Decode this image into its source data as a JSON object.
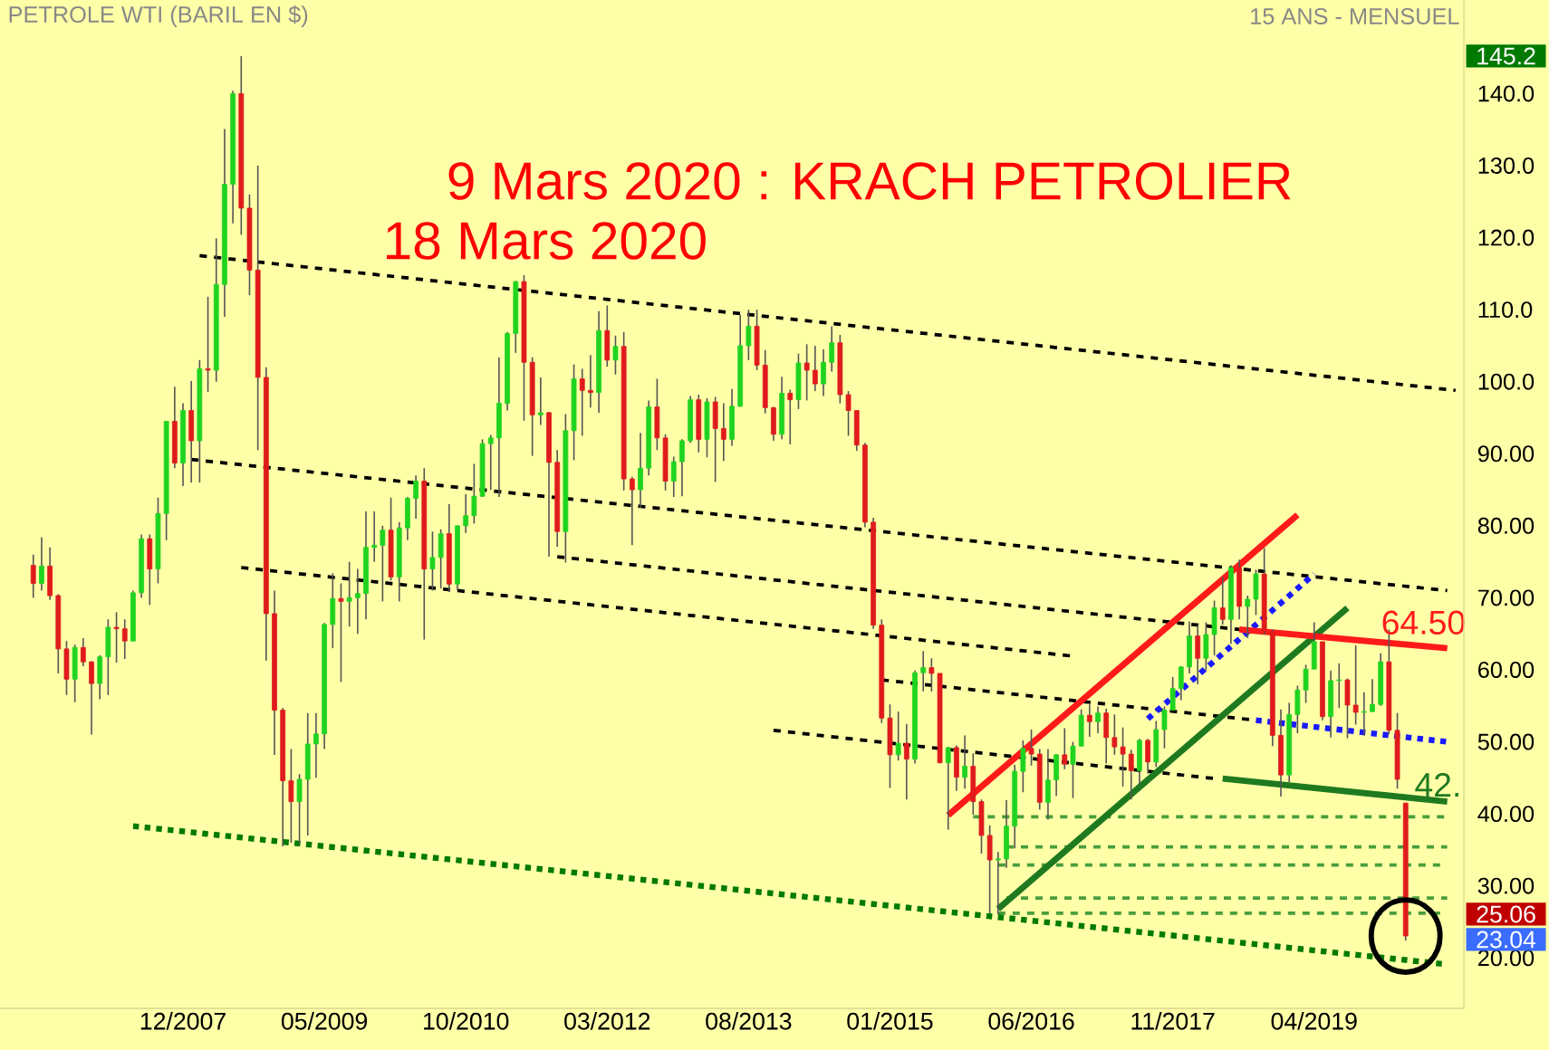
{
  "chart_data": {
    "type": "candlestick",
    "title": "PETROLE WTI (BARIL EN $)",
    "subtitle": "15 ANS - MENSUEL",
    "xlim": [
      "2006-02",
      "2020-10"
    ],
    "ylim": [
      13,
      153
    ],
    "xticks": [
      {
        "value": "2007-12",
        "label": "12/2007"
      },
      {
        "value": "2009-05",
        "label": "05/2009"
      },
      {
        "value": "2010-10",
        "label": "10/2010"
      },
      {
        "value": "2012-03",
        "label": "03/2012"
      },
      {
        "value": "2013-08",
        "label": "08/2013"
      },
      {
        "value": "2015-01",
        "label": "01/2015"
      },
      {
        "value": "2016-06",
        "label": "06/2016"
      },
      {
        "value": "2017-11",
        "label": "11/2017"
      },
      {
        "value": "2019-04",
        "label": "04/2019"
      }
    ],
    "yticks": [
      {
        "value": 20,
        "label": "20.00"
      },
      {
        "value": 30,
        "label": "30.00"
      },
      {
        "value": 40,
        "label": "40.00"
      },
      {
        "value": 50,
        "label": "50.00"
      },
      {
        "value": 60,
        "label": "60.00"
      },
      {
        "value": 70,
        "label": "70.00"
      },
      {
        "value": 80,
        "label": "80.00"
      },
      {
        "value": 90,
        "label": "90.00"
      },
      {
        "value": 100,
        "label": "100.0"
      },
      {
        "value": 110,
        "label": "110.0"
      },
      {
        "value": 120,
        "label": "120.0"
      },
      {
        "value": 130,
        "label": "130.0"
      },
      {
        "value": 140,
        "label": "140.0"
      }
    ],
    "x": [
      "2006-06",
      "2006-07",
      "2006-08",
      "2006-09",
      "2006-10",
      "2006-11",
      "2006-12",
      "2007-01",
      "2007-02",
      "2007-03",
      "2007-04",
      "2007-05",
      "2007-06",
      "2007-07",
      "2007-08",
      "2007-09",
      "2007-10",
      "2007-11",
      "2007-12",
      "2008-01",
      "2008-02",
      "2008-03",
      "2008-04",
      "2008-05",
      "2008-06",
      "2008-07",
      "2008-08",
      "2008-09",
      "2008-10",
      "2008-11",
      "2008-12",
      "2009-01",
      "2009-02",
      "2009-03",
      "2009-04",
      "2009-05",
      "2009-06",
      "2009-07",
      "2009-08",
      "2009-09",
      "2009-10",
      "2009-11",
      "2009-12",
      "2010-01",
      "2010-02",
      "2010-03",
      "2010-04",
      "2010-05",
      "2010-06",
      "2010-07",
      "2010-08",
      "2010-09",
      "2010-10",
      "2010-11",
      "2010-12",
      "2011-01",
      "2011-02",
      "2011-03",
      "2011-04",
      "2011-05",
      "2011-06",
      "2011-07",
      "2011-08",
      "2011-09",
      "2011-10",
      "2011-11",
      "2011-12",
      "2012-01",
      "2012-02",
      "2012-03",
      "2012-04",
      "2012-05",
      "2012-06",
      "2012-07",
      "2012-08",
      "2012-09",
      "2012-10",
      "2012-11",
      "2012-12",
      "2013-01",
      "2013-02",
      "2013-03",
      "2013-04",
      "2013-05",
      "2013-06",
      "2013-07",
      "2013-08",
      "2013-09",
      "2013-10",
      "2013-11",
      "2013-12",
      "2014-01",
      "2014-02",
      "2014-03",
      "2014-04",
      "2014-05",
      "2014-06",
      "2014-07",
      "2014-08",
      "2014-09",
      "2014-10",
      "2014-11",
      "2014-12",
      "2015-01",
      "2015-02",
      "2015-03",
      "2015-04",
      "2015-05",
      "2015-06",
      "2015-07",
      "2015-08",
      "2015-09",
      "2015-10",
      "2015-11",
      "2015-12",
      "2016-01",
      "2016-02",
      "2016-03",
      "2016-04",
      "2016-05",
      "2016-06",
      "2016-07",
      "2016-08",
      "2016-09",
      "2016-10",
      "2016-11",
      "2016-12",
      "2017-01",
      "2017-02",
      "2017-03",
      "2017-04",
      "2017-05",
      "2017-06",
      "2017-07",
      "2017-08",
      "2017-09",
      "2017-10",
      "2017-11",
      "2017-12",
      "2018-01",
      "2018-02",
      "2018-03",
      "2018-04",
      "2018-05",
      "2018-06",
      "2018-07",
      "2018-08",
      "2018-09",
      "2018-10",
      "2018-11",
      "2018-12",
      "2019-01",
      "2019-02",
      "2019-03",
      "2019-04",
      "2019-05",
      "2019-06",
      "2019-07",
      "2019-08",
      "2019-09",
      "2019-10",
      "2019-11",
      "2019-12",
      "2020-01",
      "2020-02",
      "2020-03"
    ],
    "ohlc": [
      [
        74.5,
        76,
        70,
        72
      ],
      [
        72,
        78.4,
        71,
        74.4
      ],
      [
        74.4,
        77,
        69.7,
        70.3
      ],
      [
        70.3,
        70.5,
        59.5,
        62.9
      ],
      [
        62.9,
        64,
        56.5,
        58.7
      ],
      [
        58.7,
        63.5,
        55.5,
        63.1
      ],
      [
        63.1,
        64.4,
        60.5,
        61.1
      ],
      [
        61.1,
        61.2,
        51,
        58.1
      ],
      [
        58.1,
        62,
        55.9,
        61.8
      ],
      [
        61.8,
        67,
        56.5,
        65.9
      ],
      [
        65.9,
        68,
        61,
        65.7
      ],
      [
        65.7,
        67,
        61.5,
        64
      ],
      [
        64,
        71,
        64,
        70.7
      ],
      [
        70.7,
        78.8,
        70,
        78.2
      ],
      [
        78.2,
        78.8,
        69,
        74
      ],
      [
        74,
        83.9,
        72,
        81.7
      ],
      [
        81.7,
        94.5,
        78,
        94.5
      ],
      [
        94.5,
        99.3,
        88,
        88.7
      ],
      [
        88.7,
        97,
        85.5,
        96
      ],
      [
        96,
        100.1,
        86,
        91.8
      ],
      [
        91.8,
        103,
        86,
        101.8
      ],
      [
        101.8,
        111.8,
        98.6,
        101.6
      ],
      [
        101.6,
        119.9,
        100,
        113.5
      ],
      [
        113.5,
        135.1,
        109,
        127.4
      ],
      [
        127.4,
        140.4,
        122,
        140
      ],
      [
        140,
        145.2,
        120.4,
        124.1
      ],
      [
        124.1,
        126,
        112,
        115.5
      ],
      [
        115.5,
        130,
        90.5,
        100.6
      ],
      [
        100.6,
        102,
        61.3,
        67.8
      ],
      [
        67.8,
        71,
        48.2,
        54.4
      ],
      [
        54.4,
        54.7,
        35.5,
        44.6
      ],
      [
        44.6,
        49,
        36,
        41.7
      ],
      [
        41.7,
        45.5,
        35.8,
        44.8
      ],
      [
        44.8,
        54,
        37,
        49.7
      ],
      [
        49.7,
        54,
        45,
        51.1
      ],
      [
        51.1,
        66.5,
        49,
        66.3
      ],
      [
        66.3,
        73.4,
        63,
        69.9
      ],
      [
        69.9,
        72,
        58.3,
        69.5
      ],
      [
        69.5,
        75,
        66,
        70
      ],
      [
        70,
        74,
        65,
        70.6
      ],
      [
        70.6,
        82,
        67,
        77
      ],
      [
        77,
        82,
        75,
        77.3
      ],
      [
        77.3,
        80,
        69.5,
        79.4
      ],
      [
        79.4,
        83.9,
        72.4,
        72.9
      ],
      [
        72.9,
        80.5,
        69.5,
        79.7
      ],
      [
        79.7,
        84,
        78,
        83.8
      ],
      [
        83.8,
        87,
        81,
        86.2
      ],
      [
        86.2,
        88,
        64.2,
        74
      ],
      [
        74,
        79.2,
        71,
        75.6
      ],
      [
        75.6,
        79.5,
        71.3,
        78.9
      ],
      [
        78.9,
        83,
        70.8,
        71.9
      ],
      [
        71.9,
        80,
        71,
        80
      ],
      [
        80,
        84.4,
        79,
        81.4
      ],
      [
        81.4,
        88.6,
        80.3,
        84.1
      ],
      [
        84.1,
        92,
        84,
        91.4
      ],
      [
        91.4,
        92.6,
        85,
        92.2
      ],
      [
        92.2,
        103.4,
        84,
        97
      ],
      [
        97,
        106.9,
        96,
        106.7
      ],
      [
        106.7,
        114,
        104,
        113.9
      ],
      [
        113.9,
        114.8,
        94.6,
        102.7
      ],
      [
        102.7,
        103.4,
        89.7,
        95.4
      ],
      [
        95.4,
        100.6,
        94,
        95.7
      ],
      [
        95.7,
        95.8,
        75.7,
        88.8
      ],
      [
        88.8,
        90.5,
        77.1,
        79.2
      ],
      [
        79.2,
        95.5,
        74.9,
        93.2
      ],
      [
        93.2,
        102.4,
        89.1,
        100.4
      ],
      [
        100.4,
        101.8,
        92.5,
        98.8
      ],
      [
        98.8,
        103.7,
        96.4,
        98.5
      ],
      [
        98.5,
        109.8,
        95.7,
        107.1
      ],
      [
        107.1,
        110.6,
        102.1,
        103
      ],
      [
        103,
        106.4,
        101,
        104.9
      ],
      [
        104.9,
        106.9,
        84.9,
        86.5
      ],
      [
        86.5,
        86.8,
        77.3,
        85
      ],
      [
        85,
        92.9,
        82.5,
        88
      ],
      [
        88,
        97.4,
        87,
        96.5
      ],
      [
        96.5,
        100.4,
        90.5,
        92.2
      ],
      [
        92.2,
        92.7,
        84.9,
        86.2
      ],
      [
        86.2,
        89.6,
        84,
        88.9
      ],
      [
        88.9,
        92,
        84.1,
        91.8
      ],
      [
        91.8,
        98,
        91.5,
        97.5
      ],
      [
        97.5,
        98.2,
        90.2,
        92
      ],
      [
        92,
        97.7,
        89.5,
        97.2
      ],
      [
        97.2,
        97.9,
        86.1,
        93.5
      ],
      [
        93.5,
        97,
        89,
        92
      ],
      [
        92,
        99,
        91.1,
        96.6
      ],
      [
        96.6,
        109.3,
        96.5,
        105
      ],
      [
        105,
        110,
        103,
        107.7
      ],
      [
        107.7,
        110,
        101.6,
        102.3
      ],
      [
        102.3,
        104.4,
        95.6,
        96.4
      ],
      [
        96.4,
        96.5,
        91.8,
        92.7
      ],
      [
        92.7,
        100.7,
        92,
        98.4
      ],
      [
        98.4,
        98.9,
        91.3,
        97.5
      ],
      [
        97.5,
        103.9,
        96.2,
        102.6
      ],
      [
        102.6,
        105.2,
        97.4,
        101.6
      ],
      [
        101.6,
        105,
        98.7,
        99.7
      ],
      [
        99.7,
        104.5,
        98,
        102.7
      ],
      [
        102.7,
        107.7,
        101.4,
        105.4
      ],
      [
        105.4,
        106.5,
        97,
        98.2
      ],
      [
        98.2,
        98.7,
        92.5,
        96
      ],
      [
        96,
        96,
        90.4,
        91.2
      ],
      [
        91.2,
        91.5,
        79.8,
        80.5
      ],
      [
        80.5,
        81.1,
        65.7,
        66.2
      ],
      [
        66.2,
        67,
        52.6,
        53.3
      ],
      [
        53.3,
        55.2,
        43.6,
        48.2
      ],
      [
        48.2,
        54.2,
        47.4,
        49.8
      ],
      [
        49.8,
        52.5,
        42,
        47.6
      ],
      [
        47.6,
        59.9,
        47,
        59.6
      ],
      [
        59.6,
        62.6,
        57,
        60.3
      ],
      [
        60.3,
        61.6,
        57,
        59.5
      ],
      [
        59.5,
        59.5,
        47,
        47.1
      ],
      [
        47.1,
        49.3,
        37.8,
        49.2
      ],
      [
        49.2,
        49.5,
        43.2,
        45.1
      ],
      [
        45.1,
        50.9,
        43.5,
        46.6
      ],
      [
        46.6,
        48.4,
        39.9,
        41.7
      ],
      [
        41.7,
        42,
        34.5,
        37
      ],
      [
        37,
        38.4,
        26.2,
        33.6
      ],
      [
        33.6,
        34.7,
        26.05,
        33.75
      ],
      [
        33.75,
        41.9,
        32.5,
        38.3
      ],
      [
        38.3,
        46.8,
        35.2,
        45.9
      ],
      [
        45.9,
        50.2,
        43,
        49.1
      ],
      [
        49.1,
        51.7,
        46.7,
        48.3
      ],
      [
        48.3,
        49,
        40.6,
        41.6
      ],
      [
        41.6,
        49,
        39.2,
        44.7
      ],
      [
        44.7,
        48.3,
        42.5,
        48.2
      ],
      [
        48.2,
        51.9,
        46.2,
        46.9
      ],
      [
        46.9,
        50,
        42.2,
        49.4
      ],
      [
        49.4,
        54.5,
        49.4,
        53.7
      ],
      [
        53.7,
        55.2,
        50.7,
        52.8
      ],
      [
        52.8,
        54.9,
        51.2,
        54
      ],
      [
        54,
        54.6,
        47,
        50.6
      ],
      [
        50.6,
        53.8,
        48.2,
        49.3
      ],
      [
        49.3,
        52,
        43.8,
        48.3
      ],
      [
        48.3,
        48.9,
        42,
        46
      ],
      [
        46,
        50.4,
        44,
        50.2
      ],
      [
        50.2,
        50.4,
        45.6,
        47.2
      ],
      [
        47.2,
        52.9,
        46.5,
        51.7
      ],
      [
        51.7,
        54.9,
        49.1,
        54.4
      ],
      [
        54.4,
        59,
        54.4,
        57.4
      ],
      [
        57.4,
        60.5,
        55.8,
        60.4
      ],
      [
        60.4,
        66.7,
        59.5,
        64.7
      ],
      [
        64.7,
        66.3,
        58,
        61.6
      ],
      [
        61.6,
        66.6,
        59.9,
        64.9
      ],
      [
        64.9,
        69.6,
        62,
        68.6
      ],
      [
        68.6,
        72.9,
        66.3,
        67
      ],
      [
        67,
        74.5,
        63.6,
        74.2
      ],
      [
        74.2,
        75.3,
        67,
        68.8
      ],
      [
        68.8,
        70.3,
        64.4,
        69.8
      ],
      [
        69.8,
        73.9,
        67.6,
        73.3
      ],
      [
        73.3,
        76.9,
        64.9,
        65.3
      ],
      [
        65.3,
        65.6,
        49.4,
        50.9
      ],
      [
        50.9,
        54.5,
        42.4,
        45.4
      ],
      [
        45.4,
        55.4,
        44.4,
        53.8
      ],
      [
        53.8,
        57.8,
        51.2,
        57.2
      ],
      [
        57.2,
        60.7,
        55.4,
        60.1
      ],
      [
        60.1,
        66.6,
        60.1,
        63.9
      ],
      [
        63.9,
        63.9,
        53,
        53.5
      ],
      [
        53.5,
        59.9,
        50.6,
        58.5
      ],
      [
        58.5,
        60.9,
        54.7,
        58.6
      ],
      [
        58.6,
        58.8,
        50.5,
        55.1
      ],
      [
        55.1,
        63.4,
        52.4,
        54.1
      ],
      [
        54.1,
        56.9,
        50.9,
        54.2
      ],
      [
        54.2,
        58.7,
        54.2,
        55.2
      ],
      [
        55.2,
        62.3,
        55,
        61.1
      ],
      [
        61.1,
        65.6,
        51.1,
        51.6
      ],
      [
        51.6,
        54,
        43.5,
        44.8
      ],
      [
        41.5,
        41.5,
        22.4,
        23.04
      ]
    ],
    "series": [
      {
        "type": "line",
        "color": "#000000",
        "line_style": "dashed",
        "x": [
          "2008-02",
          "2020-09"
        ],
        "values": [
          117.5,
          98.8
        ]
      },
      {
        "type": "line",
        "color": "#000000",
        "line_style": "dashed",
        "x": [
          "2008-01",
          "2020-08"
        ],
        "values": [
          89.2,
          71.0
        ]
      },
      {
        "type": "line",
        "color": "#000000",
        "line_style": "dashed",
        "x": [
          "2008-07",
          "2016-11"
        ],
        "values": [
          74.2,
          61.9
        ]
      },
      {
        "type": "line",
        "color": "#000000",
        "line_style": "dashed",
        "x": [
          "2011-09",
          "2018-07"
        ],
        "values": [
          75.7,
          65.6
        ]
      },
      {
        "type": "line",
        "color": "#000000",
        "line_style": "dashed",
        "x": [
          "2014-12",
          "2018-09"
        ],
        "values": [
          58.6,
          53.0
        ]
      },
      {
        "type": "line",
        "color": "#000000",
        "line_style": "dashed",
        "x": [
          "2013-11",
          "2018-04"
        ],
        "values": [
          51.6,
          44.9
        ]
      },
      {
        "type": "line",
        "color": "#4a9e3c",
        "line_style": "dashed",
        "x": [
          "2015-11",
          "2020-08"
        ],
        "values": [
          39.6,
          39.6
        ]
      },
      {
        "type": "line",
        "color": "#4a9e3c",
        "line_style": "dashed",
        "x": [
          "2016-03",
          "2020-08"
        ],
        "values": [
          35.4,
          35.4
        ]
      },
      {
        "type": "line",
        "color": "#4a9e3c",
        "line_style": "dashed",
        "x": [
          "2016-02",
          "2020-08"
        ],
        "values": [
          32.9,
          32.9
        ]
      },
      {
        "type": "line",
        "color": "#4a9e3c",
        "line_style": "dashed",
        "x": [
          "2016-03",
          "2020-08"
        ],
        "values": [
          28.3,
          28.3
        ]
      },
      {
        "type": "line",
        "color": "#4a9e3c",
        "line_style": "dashed",
        "x": [
          "2016-02",
          "2020-08"
        ],
        "values": [
          26.2,
          26.2
        ]
      },
      {
        "type": "line",
        "color": "#007a00",
        "line_style": "dotted",
        "x": [
          "2007-06",
          "2020-08"
        ],
        "values": [
          38.3,
          19.1
        ]
      },
      {
        "type": "line",
        "color": "#1f7a1f",
        "line_style": "solid",
        "x": [
          "2018-05",
          "2020-08"
        ],
        "values": [
          44.9,
          41.7
        ]
      },
      {
        "type": "line",
        "color": "#ff1a1a",
        "line_style": "solid",
        "x": [
          "2015-08",
          "2019-02"
        ],
        "values": [
          39.8,
          81.5
        ]
      },
      {
        "type": "line",
        "color": "#1f7a1f",
        "line_style": "solid",
        "x": [
          "2016-02",
          "2019-08"
        ],
        "values": [
          26.8,
          68.6
        ]
      },
      {
        "type": "line",
        "color": "#1a1aff",
        "line_style": "dotted",
        "x": [
          "2017-08",
          "2019-04"
        ],
        "values": [
          53.2,
          73.3
        ]
      },
      {
        "type": "line",
        "color": "#ff1a1a",
        "line_style": "solid",
        "x": [
          "2018-07",
          "2020-08"
        ],
        "values": [
          65.6,
          63.0
        ]
      },
      {
        "type": "line",
        "color": "#1a1aff",
        "line_style": "dotted",
        "x": [
          "2018-09",
          "2020-08"
        ],
        "values": [
          53.0,
          50.0
        ]
      }
    ],
    "annotations": [
      "9 Mars 2020 : KRACH PETROLIER",
      "18  Mars 2020",
      {
        "text": "64.50",
        "x": "2019-12",
        "y": 64.5
      },
      {
        "text": "42.",
        "x": "2020-04",
        "y": 42.0
      },
      "145.2",
      "25.06",
      "23.04"
    ]
  }
}
